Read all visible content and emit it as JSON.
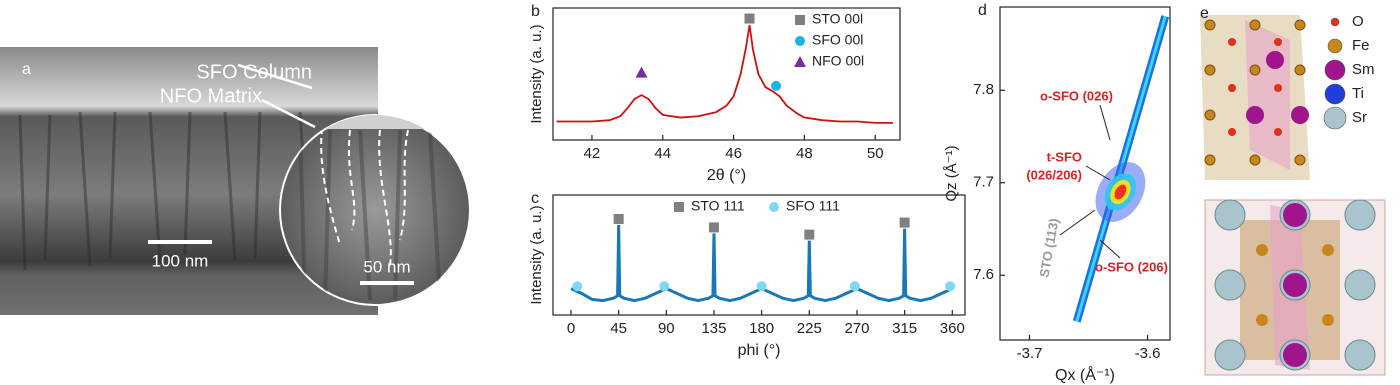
{
  "panels": {
    "a": {
      "label": "a",
      "annotations": [
        "SFO Column",
        "NFO Matrix"
      ],
      "scalebars": [
        "100 nm",
        "50 nm"
      ]
    },
    "e": {
      "label": "e",
      "legend": [
        {
          "name": "O",
          "color": "#e0301e"
        },
        {
          "name": "Fe",
          "color": "#c8861a"
        },
        {
          "name": "Sm",
          "color": "#a0148c"
        },
        {
          "name": "Ti",
          "color": "#1f3fd8"
        },
        {
          "name": "Sr",
          "color": "#a9c4cc"
        }
      ]
    }
  },
  "chart_data": [
    {
      "label": "b",
      "type": "line",
      "xlabel": "2θ (°)",
      "ylabel": "Intensity (a. u.)",
      "color": "#d01010",
      "xlim": [
        40.9,
        50.7
      ],
      "ylim": [
        0,
        100
      ],
      "xticks": [
        42,
        44,
        46,
        48,
        50
      ],
      "legend": "upper right",
      "x": [
        41.0,
        41.5,
        42.0,
        42.5,
        42.8,
        43.0,
        43.2,
        43.4,
        43.6,
        43.8,
        44.0,
        44.5,
        45.0,
        45.5,
        45.8,
        46.0,
        46.2,
        46.35,
        46.45,
        46.55,
        46.7,
        46.9,
        47.1,
        47.3,
        47.5,
        47.8,
        48.0,
        48.5,
        49,
        49.5,
        50,
        50.5
      ],
      "values": [
        14,
        14,
        14,
        15,
        18,
        24,
        31,
        34,
        31,
        24,
        19,
        17,
        18,
        21,
        26,
        33,
        50,
        70,
        87,
        68,
        50,
        40,
        37,
        33,
        26,
        20,
        17,
        15,
        14,
        14,
        13,
        13
      ],
      "markers": [
        {
          "name": "STO 00l",
          "color": "#7f7f7f",
          "shape": "square",
          "x": [
            46.45
          ],
          "values": [
            92
          ]
        },
        {
          "name": "SFO 00l",
          "color": "#19b4e8",
          "shape": "circle",
          "x": [
            47.2
          ],
          "values": [
            41
          ]
        },
        {
          "name": "NFO 00l",
          "color": "#7030a0",
          "shape": "triangle",
          "x": [
            43.4
          ],
          "values": [
            51
          ]
        }
      ]
    },
    {
      "label": "c",
      "type": "line",
      "xlabel": "phi (°)",
      "ylabel": "Intensity (a. u.)",
      "color": "#1a78b4",
      "xlim": [
        -17,
        372
      ],
      "ylim": [
        0,
        100
      ],
      "xticks": [
        0,
        45,
        90,
        135,
        180,
        225,
        270,
        315,
        360
      ],
      "legend": "upper center",
      "x": [
        0,
        10,
        20,
        30,
        40,
        44,
        45,
        46,
        50,
        60,
        70,
        80,
        90,
        100,
        110,
        120,
        130,
        134,
        135,
        136,
        140,
        150,
        160,
        170,
        180,
        190,
        200,
        210,
        220,
        224,
        225,
        226,
        230,
        240,
        250,
        260,
        270,
        280,
        290,
        300,
        310,
        314,
        315,
        316,
        320,
        330,
        340,
        350,
        360
      ],
      "values": [
        22,
        18,
        13,
        12,
        14,
        16,
        75,
        16,
        14,
        12,
        14,
        18,
        22,
        18,
        14,
        12,
        14,
        16,
        68,
        16,
        14,
        12,
        14,
        18,
        22,
        18,
        14,
        12,
        14,
        16,
        62,
        16,
        14,
        12,
        14,
        18,
        22,
        18,
        14,
        12,
        14,
        16,
        72,
        16,
        14,
        12,
        14,
        18,
        22
      ],
      "markers": [
        {
          "name": "STO 111",
          "color": "#808080",
          "shape": "square",
          "x": [
            45,
            135,
            225,
            315
          ],
          "values": [
            80,
            73,
            67,
            77
          ]
        },
        {
          "name": "SFO 111",
          "color": "#7fd6f5",
          "shape": "circle",
          "x": [
            6,
            88,
            180,
            268,
            358
          ],
          "values": [
            24,
            24,
            24,
            24,
            24
          ]
        }
      ]
    },
    {
      "label": "d",
      "type": "map",
      "xlabel": "Qx (Å⁻¹)",
      "ylabel": "Qz (Å⁻¹)",
      "xlim": [
        -3.725,
        -3.581
      ],
      "ylim": [
        7.53,
        7.89
      ],
      "xticks": [
        -3.7,
        -3.6
      ],
      "yticks": [
        7.6,
        7.7,
        7.8
      ],
      "streak": {
        "x": [
          -3.66,
          -3.585
        ],
        "values": [
          7.55,
          7.88
        ]
      },
      "peak": {
        "x": -3.623,
        "values": 7.69
      },
      "annotations": [
        "o-SFO (026)",
        "t-SFO",
        "(026/206)",
        "STO (113)",
        "o-SFO (206)"
      ]
    }
  ]
}
